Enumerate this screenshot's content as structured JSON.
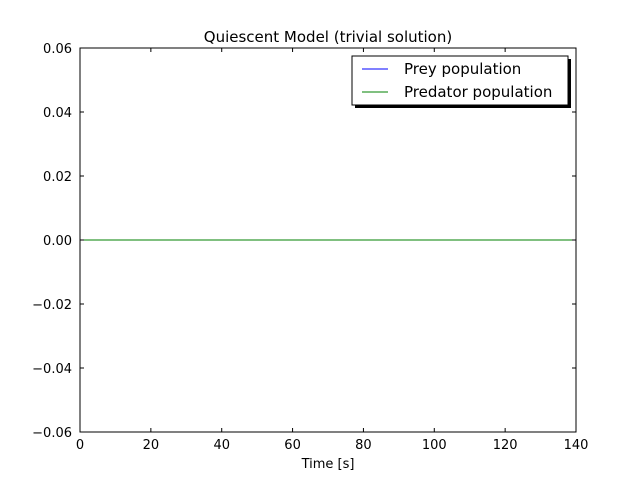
{
  "chart_data": {
    "type": "line",
    "title": "Quiescent Model (trivial solution)",
    "xlabel": "Time [s]",
    "ylabel": "",
    "xlim": [
      0,
      140
    ],
    "ylim": [
      -0.06,
      0.06
    ],
    "xticks": [
      0,
      20,
      40,
      60,
      80,
      100,
      120,
      140
    ],
    "yticks": [
      -0.06,
      -0.04,
      -0.02,
      0.0,
      0.02,
      0.04,
      0.06
    ],
    "xtick_labels": [
      "0",
      "20",
      "40",
      "60",
      "80",
      "100",
      "120",
      "140"
    ],
    "ytick_labels": [
      "−0.06",
      "−0.04",
      "−0.02",
      "0.00",
      "0.02",
      "0.04",
      "0.06"
    ],
    "grid": false,
    "legend_position": "top-right",
    "series": [
      {
        "name": "Prey population",
        "color": "#0000ff",
        "x": [
          0,
          140
        ],
        "y": [
          0,
          0
        ]
      },
      {
        "name": "Predator population",
        "color": "#008000",
        "x": [
          0,
          140
        ],
        "y": [
          0,
          0
        ]
      }
    ]
  }
}
